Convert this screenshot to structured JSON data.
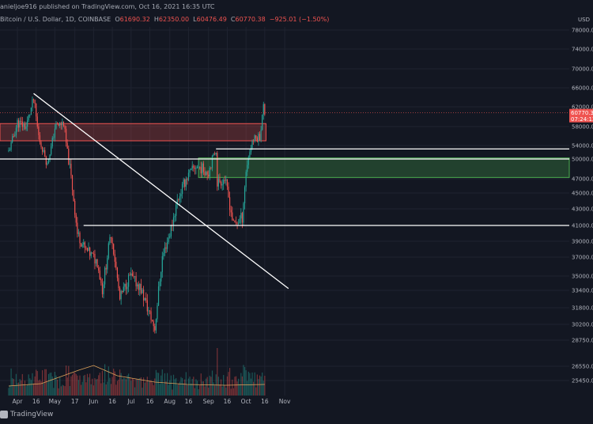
{
  "header": {
    "published": "anieljoe916 published on TradingView.com, Oct 16, 2021 16:35 UTC",
    "symbol": "Bitcoin / U.S. Dollar, 1D, COINBASE",
    "o_label": "O",
    "o_value": "61690.32",
    "h_label": "H",
    "h_value": "62350.00",
    "l_label": "L",
    "l_value": "60476.49",
    "c_label": "C",
    "c_value": "60770.38",
    "change": "−925.01 (−1.50%)"
  },
  "brand": "TradingView",
  "colors": {
    "background": "#131722",
    "up": "#26a69a",
    "down": "#ef5350",
    "resistance": "#ef5350",
    "support": "#4caf50"
  },
  "chart_data": {
    "type": "candlestick",
    "symbol": "Bitcoin / U.S. Dollar",
    "timeframe": "1D",
    "currency": "USD",
    "y_axis_ticks": [
      "78000.00",
      "74000.00",
      "70000.00",
      "66000.00",
      "62000.00",
      "58000.00",
      "54000.00",
      "50000.00",
      "47000.00",
      "45000.00",
      "43000.00",
      "41000.00",
      "39000.00",
      "37000.00",
      "35000.00",
      "33400.00",
      "31800.00",
      "30200.00",
      "28750.00",
      "26550.00",
      "25450.00"
    ],
    "x_axis_ticks": [
      "Apr",
      "16",
      "May",
      "17",
      "Jun",
      "16",
      "Jul",
      "16",
      "Aug",
      "16",
      "Sep",
      "16",
      "Oct",
      "16",
      "Nov"
    ],
    "last_price": "60770.38",
    "countdown": "07:24:12",
    "resistance_zone": {
      "from": 55000,
      "to": 58600
    },
    "support_zone": {
      "from": 47200,
      "to": 50300
    },
    "horizontal_levels": [
      50000,
      53000,
      41000
    ],
    "downtrend_line": {
      "from": {
        "date": "2021-04-14",
        "price": 64800
      },
      "to": {
        "date": "2021-11-04",
        "price": 33600
      }
    },
    "close_path": [
      {
        "date": "2021-03-25",
        "close": 52300
      },
      {
        "date": "2021-04-01",
        "close": 58800
      },
      {
        "date": "2021-04-08",
        "close": 58000
      },
      {
        "date": "2021-04-14",
        "close": 63500
      },
      {
        "date": "2021-04-18",
        "close": 56000
      },
      {
        "date": "2021-04-25",
        "close": 49000
      },
      {
        "date": "2021-05-01",
        "close": 57800
      },
      {
        "date": "2021-05-08",
        "close": 58800
      },
      {
        "date": "2021-05-12",
        "close": 50000
      },
      {
        "date": "2021-05-19",
        "close": 40000
      },
      {
        "date": "2021-05-25",
        "close": 38000
      },
      {
        "date": "2021-06-04",
        "close": 36500
      },
      {
        "date": "2021-06-08",
        "close": 33500
      },
      {
        "date": "2021-06-15",
        "close": 40000
      },
      {
        "date": "2021-06-22",
        "close": 32500
      },
      {
        "date": "2021-06-30",
        "close": 35000
      },
      {
        "date": "2021-07-08",
        "close": 33800
      },
      {
        "date": "2021-07-20",
        "close": 29800
      },
      {
        "date": "2021-07-26",
        "close": 37000
      },
      {
        "date": "2021-08-01",
        "close": 40000
      },
      {
        "date": "2021-08-07",
        "close": 44000
      },
      {
        "date": "2021-08-14",
        "close": 47000
      },
      {
        "date": "2021-08-22",
        "close": 49000
      },
      {
        "date": "2021-09-01",
        "close": 48000
      },
      {
        "date": "2021-09-07",
        "close": 52500
      },
      {
        "date": "2021-09-08",
        "close": 46500
      },
      {
        "date": "2021-09-14",
        "close": 47000
      },
      {
        "date": "2021-09-21",
        "close": 41000
      },
      {
        "date": "2021-09-28",
        "close": 42000
      },
      {
        "date": "2021-10-01",
        "close": 48000
      },
      {
        "date": "2021-10-06",
        "close": 55000
      },
      {
        "date": "2021-10-12",
        "close": 56000
      },
      {
        "date": "2021-10-15",
        "close": 62000
      },
      {
        "date": "2021-10-16",
        "close": 60770
      }
    ]
  }
}
